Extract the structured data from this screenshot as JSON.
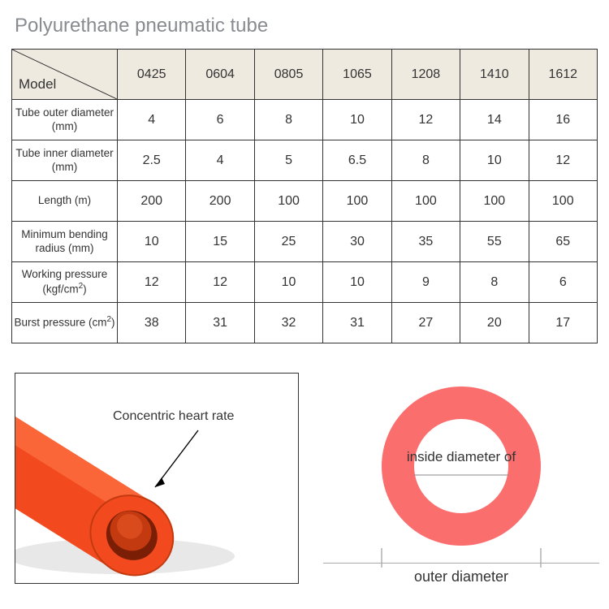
{
  "title": "Polyurethane pneumatic tube",
  "table": {
    "corner_label": "Model",
    "header_bg": "#eeeae0",
    "border_color": "#333333",
    "columns": [
      "0425",
      "0604",
      "0805",
      "1065",
      "1208",
      "1410",
      "1612"
    ],
    "rows": [
      {
        "label": "Tube outer diameter (mm)",
        "values": [
          "4",
          "6",
          "8",
          "10",
          "12",
          "14",
          "16"
        ]
      },
      {
        "label": "Tube inner diameter (mm)",
        "values": [
          "2.5",
          "4",
          "5",
          "6.5",
          "8",
          "10",
          "12"
        ]
      },
      {
        "label": "Length (m)",
        "values": [
          "200",
          "200",
          "100",
          "100",
          "100",
          "100",
          "100"
        ]
      },
      {
        "label": "Minimum bending radius (mm)",
        "values": [
          "10",
          "15",
          "25",
          "30",
          "35",
          "55",
          "65"
        ]
      },
      {
        "label_html": "Working pressure (kgf/cm<span class=\"sup\">2</span>)",
        "values": [
          "12",
          "12",
          "10",
          "10",
          "9",
          "8",
          "6"
        ]
      },
      {
        "label_html": "Burst pressure (cm<span class=\"sup\">2</span>)",
        "values": [
          "38",
          "31",
          "32",
          "31",
          "27",
          "20",
          "17"
        ]
      }
    ]
  },
  "left_diagram": {
    "callout": "Concentric heart rate",
    "tube_fill_outer": "#f24a1e",
    "tube_fill_inner": "#d13a12",
    "tube_highlight": "#ff7a4a",
    "shadow": "#d8d8d8",
    "arrow_color": "#000000"
  },
  "right_diagram": {
    "label_inside": "inside diameter of",
    "label_outside": "outer diameter",
    "ring_color": "#fb6e6e",
    "outer_r": 98,
    "inner_r": 58,
    "tick_color": "#888888"
  }
}
